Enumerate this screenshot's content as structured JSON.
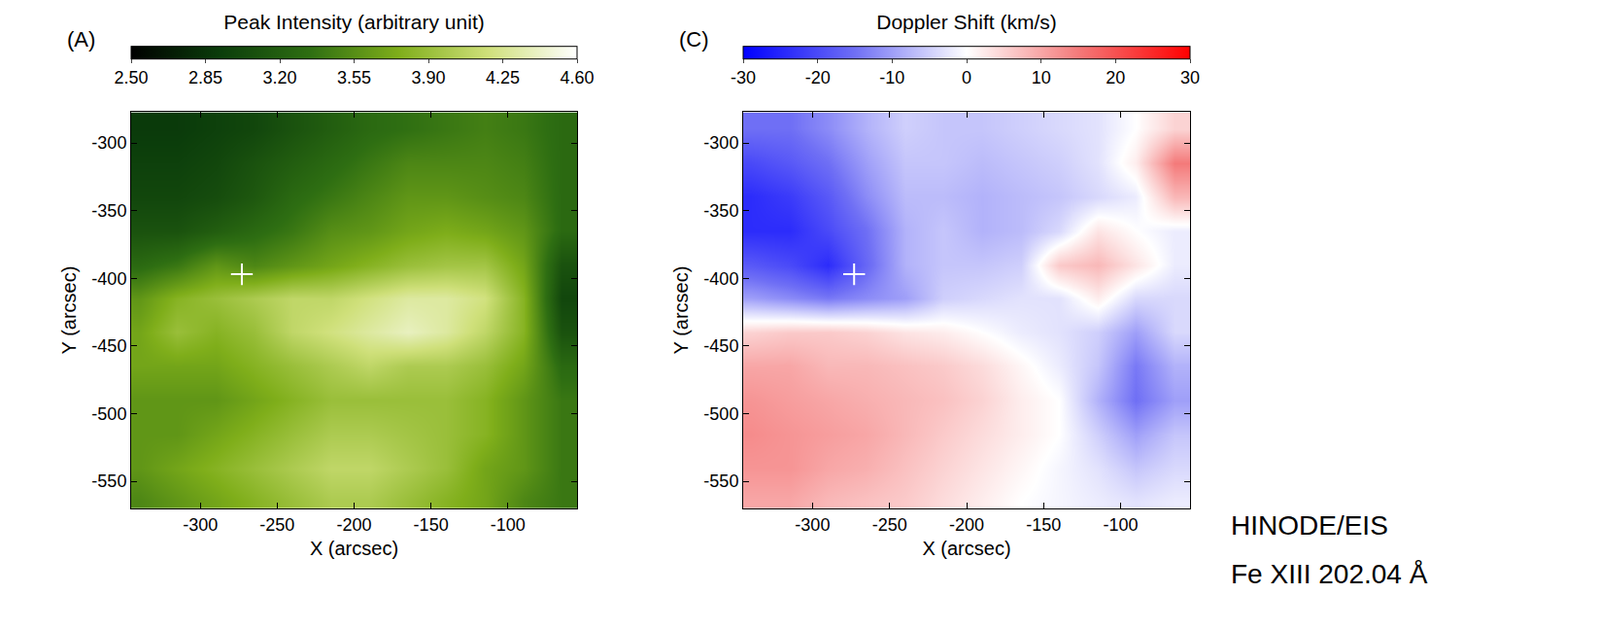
{
  "chart_data": [
    {
      "type": "heatmap",
      "panel_label": "(A)",
      "colorbar_title": "Peak Intensity (arbitrary unit)",
      "xlabel": "X (arcsec)",
      "ylabel": "Y (arcsec)",
      "xlim": [
        -345,
        -55
      ],
      "ylim": [
        -570,
        -277
      ],
      "xticks": [
        -300,
        -250,
        -200,
        -150,
        -100
      ],
      "yticks": [
        -300,
        -350,
        -400,
        -450,
        -500,
        -550
      ],
      "colors": [
        "#000000",
        "#0b3d0b",
        "#2e6e12",
        "#7fae1a",
        "#cfe07a",
        "#ffffff"
      ],
      "colorbar_range": [
        2.5,
        4.6
      ],
      "colorbar_ticks": [
        {
          "value": 2.5,
          "label": "2.50"
        },
        {
          "value": 2.85,
          "label": "2.85"
        },
        {
          "value": 3.2,
          "label": "3.20"
        },
        {
          "value": 3.55,
          "label": "3.55"
        },
        {
          "value": 3.9,
          "label": "3.90"
        },
        {
          "value": 4.25,
          "label": "4.25"
        },
        {
          "value": 4.6,
          "label": "4.60"
        }
      ],
      "x": [
        -340,
        -315,
        -290,
        -265,
        -240,
        -215,
        -190,
        -165,
        -140,
        -115,
        -90,
        -65
      ],
      "y": [
        -290,
        -315,
        -340,
        -365,
        -390,
        -415,
        -440,
        -465,
        -490,
        -515,
        -540,
        -565
      ],
      "cells": [
        [
          2.9,
          2.9,
          2.95,
          3.0,
          3.1,
          3.2,
          3.3,
          3.35,
          3.4,
          3.45,
          3.4,
          3.3
        ],
        [
          2.95,
          2.95,
          3.0,
          3.1,
          3.2,
          3.3,
          3.4,
          3.5,
          3.5,
          3.5,
          3.45,
          3.3
        ],
        [
          3.0,
          3.0,
          3.05,
          3.15,
          3.3,
          3.4,
          3.5,
          3.6,
          3.6,
          3.55,
          3.5,
          3.3
        ],
        [
          3.1,
          3.1,
          3.2,
          3.3,
          3.4,
          3.55,
          3.6,
          3.7,
          3.75,
          3.7,
          3.6,
          3.3
        ],
        [
          3.3,
          3.4,
          3.6,
          3.5,
          3.6,
          3.7,
          3.8,
          3.9,
          3.95,
          3.95,
          3.7,
          3.1
        ],
        [
          3.6,
          3.8,
          3.9,
          4.0,
          4.1,
          4.1,
          4.2,
          4.3,
          4.3,
          4.2,
          3.8,
          3.0
        ],
        [
          3.7,
          3.9,
          3.8,
          3.9,
          4.1,
          4.2,
          4.3,
          4.4,
          4.3,
          4.1,
          3.8,
          3.1
        ],
        [
          3.7,
          3.7,
          3.7,
          3.8,
          3.9,
          4.0,
          4.1,
          4.0,
          4.0,
          3.9,
          3.7,
          3.3
        ],
        [
          3.6,
          3.6,
          3.6,
          3.7,
          3.8,
          3.9,
          3.9,
          3.9,
          3.9,
          3.8,
          3.6,
          3.4
        ],
        [
          3.6,
          3.6,
          3.7,
          3.8,
          3.9,
          4.0,
          4.0,
          3.95,
          3.9,
          3.8,
          3.6,
          3.4
        ],
        [
          3.6,
          3.7,
          3.8,
          3.9,
          4.0,
          4.1,
          4.1,
          4.0,
          3.9,
          3.7,
          3.6,
          3.4
        ],
        [
          3.5,
          3.6,
          3.7,
          3.8,
          3.9,
          4.0,
          4.0,
          3.9,
          3.8,
          3.7,
          3.5,
          3.4
        ]
      ],
      "point": {
        "x": -273,
        "y": -397,
        "marker": "cross",
        "color": "#ffffff"
      }
    },
    {
      "type": "heatmap",
      "panel_label": "(C)",
      "colorbar_title": "Doppler Shift (km/s)",
      "xlabel": "X (arcsec)",
      "ylabel": "Y (arcsec)",
      "xlim": [
        -345,
        -55
      ],
      "ylim": [
        -570,
        -277
      ],
      "xticks": [
        -300,
        -250,
        -200,
        -150,
        -100
      ],
      "yticks": [
        -300,
        -350,
        -400,
        -450,
        -500,
        -550
      ],
      "colors": [
        "#0000ff",
        "#6f6ff5",
        "#ffffff",
        "#f47a7a",
        "#ff0000"
      ],
      "colorbar_range": [
        -30,
        30
      ],
      "colorbar_ticks": [
        -30,
        -20,
        -10,
        0,
        10,
        20,
        30
      ],
      "x": [
        -340,
        -315,
        -290,
        -265,
        -240,
        -215,
        -190,
        -165,
        -140,
        -115,
        -90,
        -65
      ],
      "y": [
        -290,
        -315,
        -340,
        -365,
        -390,
        -415,
        -440,
        -465,
        -490,
        -515,
        -540,
        -565
      ],
      "cells": [
        [
          -15,
          -15,
          -12,
          -8,
          -5,
          -6,
          -6,
          -5,
          -4,
          -3,
          0,
          5
        ],
        [
          -20,
          -18,
          -15,
          -10,
          -6,
          -6,
          -7,
          -6,
          -5,
          -3,
          2,
          15
        ],
        [
          -24,
          -22,
          -18,
          -12,
          -7,
          -7,
          -8,
          -7,
          -6,
          -4,
          -2,
          8
        ],
        [
          -24,
          -24,
          -20,
          -15,
          -8,
          -6,
          -8,
          -7,
          -4,
          3,
          0,
          -2
        ],
        [
          -18,
          -20,
          -24,
          -16,
          -8,
          -6,
          -6,
          -5,
          6,
          8,
          3,
          -2
        ],
        [
          -10,
          -12,
          -14,
          -12,
          -10,
          -5,
          -4,
          -3,
          -3,
          2,
          -4,
          -4
        ],
        [
          5,
          6,
          6,
          5,
          3,
          2,
          0,
          -2,
          -3,
          -5,
          -10,
          -4
        ],
        [
          10,
          10,
          8,
          8,
          7,
          6,
          4,
          1,
          -2,
          -6,
          -14,
          -8
        ],
        [
          12,
          11,
          10,
          9,
          8,
          7,
          5,
          2,
          0,
          -8,
          -15,
          -10
        ],
        [
          13,
          12,
          11,
          10,
          8,
          6,
          4,
          2,
          0,
          -5,
          -10,
          -6
        ],
        [
          12,
          12,
          10,
          9,
          7,
          5,
          3,
          1,
          -1,
          -3,
          -6,
          -4
        ],
        [
          10,
          10,
          8,
          7,
          6,
          4,
          2,
          0,
          -1,
          -2,
          -3,
          -2
        ]
      ],
      "point": {
        "x": -273,
        "y": -397,
        "marker": "cross",
        "color": "#ffffff"
      }
    }
  ],
  "annotations": [
    "HINODE/EIS",
    "Fe XIII 202.04 Å"
  ]
}
